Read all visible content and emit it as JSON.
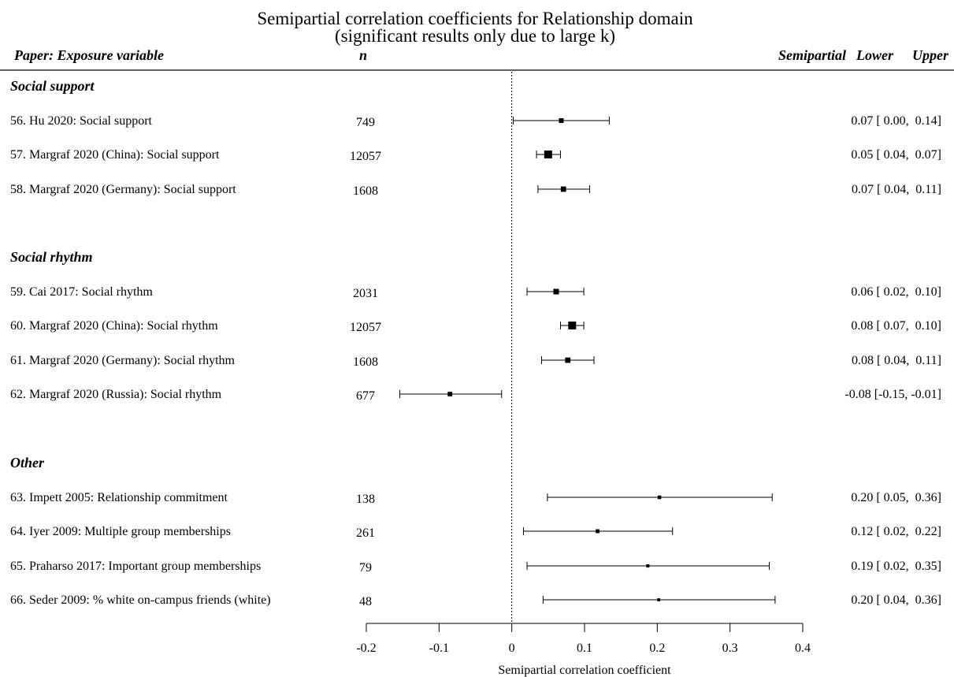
{
  "chart_data": {
    "type": "forest",
    "title": "Semipartial correlation coefficients for Relationship domain",
    "subtitle": "(significant results only due to large k)",
    "columns": {
      "study": "Paper: Exposure variable",
      "n": "n",
      "estimate": "Semipartial",
      "lower": "Lower",
      "upper": "Upper"
    },
    "xlabel": "Semipartial correlation coefficient",
    "xlim": [
      -0.2,
      0.4
    ],
    "xticks": [
      -0.2,
      -0.1,
      0,
      0.1,
      0.2,
      0.3,
      0.4
    ],
    "xtick_labels": [
      "-0.2",
      "-0.1",
      "0",
      "0.1",
      "0.2",
      "0.3",
      "0.4"
    ],
    "reference_line": 0,
    "groups": [
      {
        "label": "Social support",
        "studies": [
          {
            "label": "56. Hu 2020: Social support",
            "n": "749",
            "est": 0.07,
            "lower": 0.0,
            "upper": 0.14,
            "ci_text": "0.07 [ 0.00,  0.14]",
            "est_plot": 0.068,
            "lower_plot": 0.002,
            "upper_plot": 0.134,
            "weight": 0.25
          },
          {
            "label": "57. Margraf 2020 (China): Social support",
            "n": "12057",
            "est": 0.05,
            "lower": 0.04,
            "upper": 0.07,
            "ci_text": "0.05 [ 0.04,  0.07]",
            "est_plot": 0.05,
            "lower_plot": 0.034,
            "upper_plot": 0.067,
            "weight": 1.0
          },
          {
            "label": "58. Margraf 2020 (Germany): Social support",
            "n": "1608",
            "est": 0.07,
            "lower": 0.04,
            "upper": 0.11,
            "ci_text": "0.07 [ 0.04,  0.11]",
            "est_plot": 0.071,
            "lower_plot": 0.036,
            "upper_plot": 0.107,
            "weight": 0.35
          }
        ]
      },
      {
        "label": "Social rhythm",
        "studies": [
          {
            "label": "59. Cai 2017: Social rhythm",
            "n": "2031",
            "est": 0.06,
            "lower": 0.02,
            "upper": 0.1,
            "ci_text": "0.06 [ 0.02,  0.10]",
            "est_plot": 0.061,
            "lower_plot": 0.021,
            "upper_plot": 0.099,
            "weight": 0.4
          },
          {
            "label": "60. Margraf 2020 (China): Social rhythm",
            "n": "12057",
            "est": 0.08,
            "lower": 0.07,
            "upper": 0.1,
            "ci_text": "0.08 [ 0.07,  0.10]",
            "est_plot": 0.083,
            "lower_plot": 0.067,
            "upper_plot": 0.099,
            "weight": 1.0
          },
          {
            "label": "61. Margraf 2020 (Germany): Social rhythm",
            "n": "1608",
            "est": 0.08,
            "lower": 0.04,
            "upper": 0.11,
            "ci_text": "0.08 [ 0.04,  0.11]",
            "est_plot": 0.077,
            "lower_plot": 0.041,
            "upper_plot": 0.113,
            "weight": 0.35
          },
          {
            "label": "62. Margraf 2020 (Russia): Social rhythm",
            "n": "677",
            "est": -0.08,
            "lower": -0.15,
            "upper": -0.01,
            "ci_text": "-0.08 [-0.15, -0.01]",
            "est_plot": -0.085,
            "lower_plot": -0.154,
            "upper_plot": -0.014,
            "weight": 0.22
          }
        ]
      },
      {
        "label": "Other",
        "studies": [
          {
            "label": "63. Impett 2005: Relationship commitment",
            "n": "138",
            "est": 0.2,
            "lower": 0.05,
            "upper": 0.36,
            "ci_text": "0.20 [ 0.05,  0.36]",
            "est_plot": 0.203,
            "lower_plot": 0.049,
            "upper_plot": 0.358,
            "weight": 0.1
          },
          {
            "label": "64. Iyer 2009: Multiple group memberships",
            "n": "261",
            "est": 0.12,
            "lower": 0.02,
            "upper": 0.22,
            "ci_text": "0.12 [ 0.02,  0.22]",
            "est_plot": 0.118,
            "lower_plot": 0.016,
            "upper_plot": 0.221,
            "weight": 0.13
          },
          {
            "label": "65. Praharso 2017: Important group memberships",
            "n": "79",
            "est": 0.19,
            "lower": 0.02,
            "upper": 0.35,
            "ci_text": "0.19 [ 0.02,  0.35]",
            "est_plot": 0.187,
            "lower_plot": 0.021,
            "upper_plot": 0.354,
            "weight": 0.07
          },
          {
            "label": "66. Seder 2009: % white on-campus friends (white)",
            "n": "48",
            "est": 0.2,
            "lower": 0.04,
            "upper": 0.36,
            "ci_text": "0.20 [ 0.04,  0.36]",
            "est_plot": 0.202,
            "lower_plot": 0.043,
            "upper_plot": 0.362,
            "weight": 0.05
          }
        ]
      }
    ]
  }
}
